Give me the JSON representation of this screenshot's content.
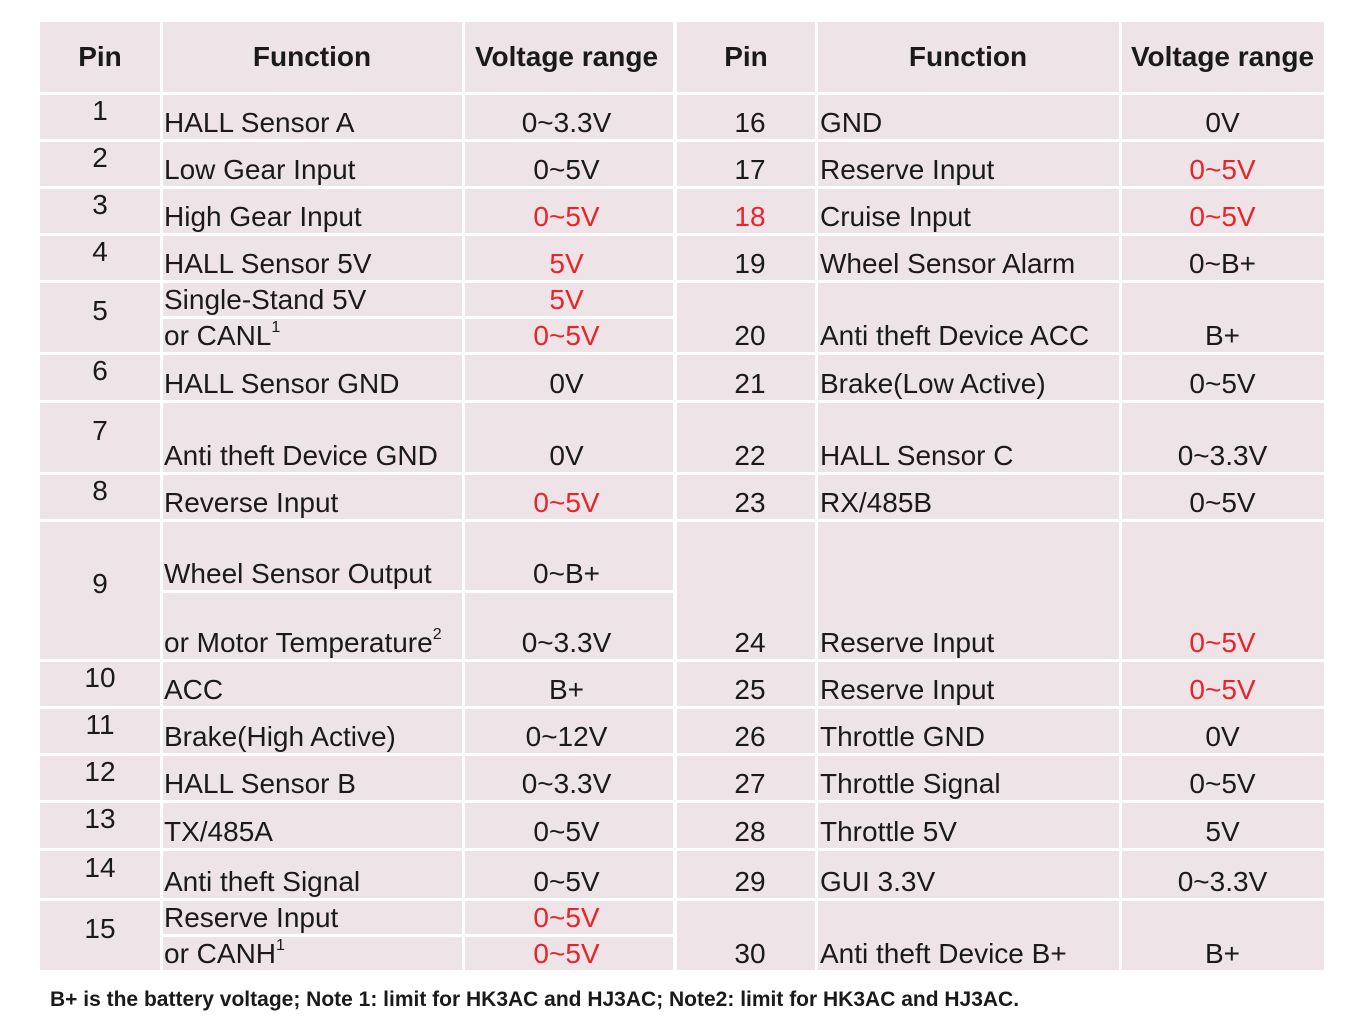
{
  "headers": {
    "pin": "Pin",
    "function": "Function",
    "voltage": "Voltage range"
  },
  "left": [
    {
      "pin": "1",
      "lines": [
        {
          "f": "HALL Sensor A",
          "v": "0~3.3V"
        }
      ]
    },
    {
      "pin": "2",
      "lines": [
        {
          "f": "Low Gear Input",
          "v": "0~5V"
        }
      ]
    },
    {
      "pin": "3",
      "lines": [
        {
          "f": "High Gear Input",
          "v": "0~5V"
        }
      ]
    },
    {
      "pin": "4",
      "lines": [
        {
          "f": "HALL Sensor 5V",
          "v": "5V"
        }
      ]
    },
    {
      "pin": "5",
      "lines": [
        {
          "f": "Single-Stand 5V",
          "v": "5V"
        },
        {
          "f": "or CANL",
          "sup": "1",
          "v": "0~5V"
        }
      ]
    },
    {
      "pin": "6",
      "lines": [
        {
          "f": "HALL Sensor GND",
          "v": "0V"
        }
      ]
    },
    {
      "pin": "7",
      "lines": [
        {
          "f": "Anti theft Device GND",
          "v": "0V"
        }
      ]
    },
    {
      "pin": "8",
      "lines": [
        {
          "f": "Reverse Input",
          "v": "0~5V"
        }
      ]
    },
    {
      "pin": "9",
      "lines": [
        {
          "f": "Wheel Sensor Output",
          "v": "0~B+"
        },
        {
          "f": "or Motor Temperature",
          "sup": "2",
          "v": "0~3.3V"
        }
      ]
    },
    {
      "pin": "10",
      "lines": [
        {
          "f": "ACC",
          "v": "B+"
        }
      ]
    },
    {
      "pin": "11",
      "lines": [
        {
          "f": "Brake(High Active)",
          "v": "0~12V"
        }
      ]
    },
    {
      "pin": "12",
      "lines": [
        {
          "f": "HALL Sensor B",
          "v": "0~3.3V"
        }
      ]
    },
    {
      "pin": "13",
      "lines": [
        {
          "f": "TX/485A",
          "v": "0~5V"
        }
      ]
    },
    {
      "pin": "14",
      "lines": [
        {
          "f": "Anti theft Signal",
          "v": "0~5V"
        }
      ]
    },
    {
      "pin": "15",
      "lines": [
        {
          "f": "Reserve Input",
          "v": "0~5V"
        },
        {
          "f": "or CANH",
          "sup": "1",
          "v": "0~5V"
        }
      ]
    }
  ],
  "right": [
    {
      "pin": "16",
      "f": "GND",
      "v": "0V"
    },
    {
      "pin": "17",
      "f": "Reserve Input",
      "v": "0~5V"
    },
    {
      "pin": "18",
      "f": "Cruise Input",
      "v": "0~5V"
    },
    {
      "pin": "19",
      "f": "Wheel Sensor Alarm",
      "v": "0~B+"
    },
    {
      "pin": "20",
      "f": "Anti theft Device ACC",
      "v": "B+"
    },
    {
      "pin": "21",
      "f": "Brake(Low Active)",
      "v": "0~5V"
    },
    {
      "pin": "22",
      "f": "HALL Sensor C",
      "v": "0~3.3V"
    },
    {
      "pin": "23",
      "f": "RX/485B",
      "v": "0~5V"
    },
    {
      "pin": "24",
      "f": "Reserve Input",
      "v": "0~5V"
    },
    {
      "pin": "25",
      "f": "Reserve Input",
      "v": "0~5V"
    },
    {
      "pin": "26",
      "f": "Throttle GND",
      "v": "0V"
    },
    {
      "pin": "27",
      "f": "Throttle Signal",
      "v": "0~5V"
    },
    {
      "pin": "28",
      "f": "Throttle 5V",
      "v": "5V"
    },
    {
      "pin": "29",
      "f": "GUI 3.3V",
      "v": "0~3.3V"
    },
    {
      "pin": "30",
      "f": "Anti theft Device B+",
      "v": "B+"
    }
  ],
  "colors": {
    "table_bg": "#eee3e6",
    "highlight_red": "#e8242a",
    "grid_lines": "#ffffff"
  },
  "footnote": "B+ is the battery voltage; Note 1: limit for HK3AC and HJ3AC; Note2: limit for HK3AC and HJ3AC."
}
